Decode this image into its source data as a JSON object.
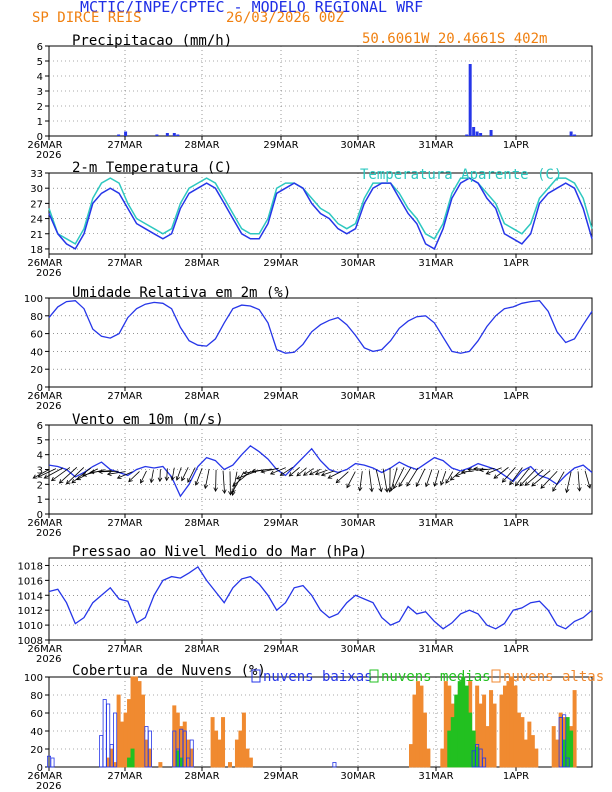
{
  "header": {
    "title": "MCTIC/INPE/CPTEC - MODELO REGIONAL WRF",
    "location": "SP DIRCE REIS",
    "run": "26/03/2026 00Z",
    "coords": "50.6061W 20.4661S 402m"
  },
  "colors": {
    "line": "#2636e8",
    "apparent": "#2ec8c0",
    "low": "#2636e8",
    "mid": "#22c020",
    "high": "#f08a30",
    "title_blue": "#1e2ee6",
    "title_orange": "#f08010"
  },
  "x_labels": [
    "26MAR",
    "27MAR",
    "28MAR",
    "29MAR",
    "30MAR",
    "31MAR",
    "1APR"
  ],
  "year_label": "2026",
  "chart_data": [
    {
      "type": "bar",
      "title": "Precipitacao (mm/h)",
      "ylim": [
        0,
        6
      ],
      "yticks": [
        0,
        1,
        2,
        3,
        4,
        5,
        6
      ],
      "series": [
        {
          "name": "precip",
          "values": {
            "20": 0.1,
            "22": 0.3,
            "31": 0.1,
            "34": 0.2,
            "36": 0.2,
            "37": 0.1,
            "120": 0.1,
            "121": 4.8,
            "122": 0.6,
            "123": 0.3,
            "124": 0.2,
            "127": 0.4,
            "150": 0.3,
            "151": 0.1
          }
        }
      ]
    },
    {
      "type": "line",
      "title": "2-m Temperatura (C)",
      "legend": "Temperatura Aparente (C)",
      "ylim": [
        17,
        33
      ],
      "yticks": [
        18,
        21,
        24,
        27,
        30,
        33
      ],
      "series": [
        {
          "name": "temperatura",
          "values": [
            25,
            21,
            19,
            18,
            21,
            27,
            29,
            30,
            29,
            26,
            23,
            22,
            21,
            20,
            21,
            26,
            29,
            30,
            31,
            30,
            27,
            24,
            21,
            20,
            20,
            23,
            29,
            30,
            31,
            30,
            27,
            25,
            24,
            22,
            21,
            22,
            27,
            30,
            31,
            31,
            28,
            25,
            23,
            19,
            18,
            22,
            28,
            31,
            32,
            31,
            28,
            26,
            21,
            20,
            19,
            21,
            27,
            29,
            30,
            31,
            30,
            26,
            20
          ]
        },
        {
          "name": "temperatura-aparente",
          "values": [
            26,
            21,
            20,
            19,
            22,
            28,
            31,
            32,
            31,
            27,
            24,
            23,
            22,
            21,
            22,
            27,
            30,
            31,
            32,
            31,
            28,
            25,
            22,
            21,
            21,
            24,
            30,
            31,
            31,
            30,
            28,
            26,
            25,
            23,
            22,
            23,
            28,
            31,
            31,
            31,
            29,
            26,
            24,
            21,
            20,
            23,
            29,
            32,
            32,
            31,
            29,
            27,
            23,
            22,
            21,
            23,
            28,
            30,
            32,
            32,
            31,
            28,
            22
          ]
        }
      ]
    },
    {
      "type": "line",
      "title": "Umidade Relativa em 2m (%)",
      "ylim": [
        0,
        100
      ],
      "yticks": [
        0,
        20,
        40,
        60,
        80,
        100
      ],
      "series": [
        {
          "name": "umidade",
          "values": [
            78,
            90,
            96,
            97,
            88,
            65,
            57,
            55,
            60,
            78,
            88,
            93,
            95,
            94,
            88,
            67,
            52,
            47,
            46,
            54,
            72,
            88,
            92,
            91,
            87,
            72,
            42,
            38,
            39,
            48,
            62,
            70,
            75,
            78,
            70,
            58,
            44,
            40,
            42,
            52,
            66,
            74,
            79,
            80,
            72,
            56,
            40,
            38,
            40,
            52,
            68,
            80,
            88,
            90,
            94,
            96,
            97,
            85,
            62,
            50,
            54,
            70,
            85
          ]
        }
      ]
    },
    {
      "type": "line",
      "title": "Vento em 10m (m/s)",
      "ylim": [
        0,
        6
      ],
      "yticks": [
        0,
        1,
        2,
        3,
        4,
        5,
        6
      ],
      "series": [
        {
          "name": "vento",
          "values": [
            3.3,
            3.2,
            3.0,
            2.5,
            2.8,
            3.2,
            3.5,
            3.0,
            2.8,
            2.6,
            3.0,
            3.2,
            3.1,
            3.2,
            2.5,
            1.2,
            2.0,
            3.2,
            3.8,
            3.6,
            3.0,
            3.3,
            4.0,
            4.6,
            4.2,
            3.7,
            3.0,
            2.6,
            3.2,
            3.8,
            4.4,
            3.6,
            3.0,
            2.8,
            3.0,
            3.4,
            3.3,
            3.1,
            2.8,
            3.1,
            3.5,
            3.2,
            3.0,
            3.4,
            3.8,
            3.6,
            3.1,
            2.9,
            3.1,
            3.4,
            3.2,
            3.0,
            2.6,
            2.2,
            2.9,
            3.2,
            2.6,
            2.4,
            2.0,
            2.6,
            3.1,
            3.3,
            2.8
          ]
        }
      ]
    },
    {
      "type": "line",
      "title": "Pressao ao Nivel Medio do Mar (hPa)",
      "ylim": [
        1008,
        1019
      ],
      "yticks": [
        1008,
        1010,
        1012,
        1014,
        1016,
        1018
      ],
      "series": [
        {
          "name": "pressao",
          "values": [
            1014.5,
            1014.8,
            1013.0,
            1010.2,
            1011.0,
            1013.0,
            1014.0,
            1015.0,
            1013.5,
            1013.2,
            1010.3,
            1011.0,
            1014.0,
            1016.0,
            1016.5,
            1016.3,
            1017.0,
            1017.8,
            1016.0,
            1014.5,
            1013.0,
            1015.0,
            1016.2,
            1016.5,
            1015.5,
            1014.0,
            1012.0,
            1013.0,
            1015.0,
            1015.3,
            1014.0,
            1012.0,
            1011.0,
            1011.5,
            1013.0,
            1014.0,
            1013.5,
            1013.0,
            1011.0,
            1010.0,
            1010.5,
            1012.5,
            1011.5,
            1011.8,
            1010.5,
            1009.5,
            1010.3,
            1011.5,
            1012.0,
            1011.5,
            1010.0,
            1009.5,
            1010.2,
            1012.0,
            1012.3,
            1013.0,
            1013.2,
            1012.0,
            1010.0,
            1009.5,
            1010.5,
            1011.0,
            1012.0
          ]
        }
      ]
    },
    {
      "type": "bar",
      "title": "Cobertura de Nuvens (%)",
      "legend": [
        "nuvens baixas",
        "nuvens medias",
        "nuvens altas"
      ],
      "ylim": [
        0,
        100
      ],
      "yticks": [
        0,
        20,
        40,
        60,
        80,
        100
      ],
      "series": [
        {
          "name": "nuvens baixas",
          "values": {
            "0": 12,
            "1": 10,
            "15": 35,
            "16": 75,
            "17": 70,
            "18": 25,
            "19": 60,
            "28": 45,
            "29": 40,
            "36": 40,
            "37": 20,
            "38": 42,
            "39": 40,
            "40": 10,
            "41": 30,
            "82": 5,
            "122": 18,
            "123": 25,
            "124": 20,
            "125": 10,
            "147": 55,
            "148": 58,
            "149": 10
          }
        },
        {
          "name": "nuvens medias",
          "values": {
            "23": 10,
            "24": 20,
            "37": 18,
            "38": 10,
            "115": 40,
            "116": 55,
            "117": 80,
            "118": 95,
            "119": 100,
            "120": 90,
            "121": 60,
            "122": 40,
            "123": 22,
            "148": 30,
            "149": 55,
            "150": 40
          }
        },
        {
          "name": "nuvens altas",
          "values": {
            "17": 10,
            "18": 20,
            "19": 5,
            "20": 80,
            "21": 50,
            "22": 60,
            "23": 75,
            "24": 100,
            "25": 100,
            "26": 95,
            "27": 80,
            "28": 30,
            "29": 20,
            "32": 5,
            "36": 68,
            "37": 60,
            "38": 45,
            "39": 50,
            "40": 30,
            "41": 20,
            "47": 55,
            "48": 40,
            "49": 30,
            "50": 55,
            "52": 5,
            "54": 30,
            "55": 40,
            "56": 60,
            "57": 20,
            "58": 10,
            "104": 25,
            "105": 80,
            "106": 95,
            "107": 90,
            "108": 60,
            "109": 20,
            "113": 20,
            "114": 95,
            "115": 90,
            "116": 70,
            "117": 50,
            "118": 85,
            "119": 40,
            "120": 80,
            "121": 95,
            "122": 40,
            "123": 90,
            "124": 70,
            "125": 80,
            "126": 45,
            "127": 85,
            "128": 70,
            "130": 80,
            "131": 90,
            "132": 95,
            "133": 100,
            "134": 90,
            "135": 60,
            "136": 55,
            "137": 30,
            "138": 50,
            "139": 35,
            "140": 20,
            "145": 45,
            "146": 30,
            "147": 60,
            "148": 55,
            "149": 40,
            "150": 45,
            "151": 85
          }
        }
      ]
    }
  ]
}
